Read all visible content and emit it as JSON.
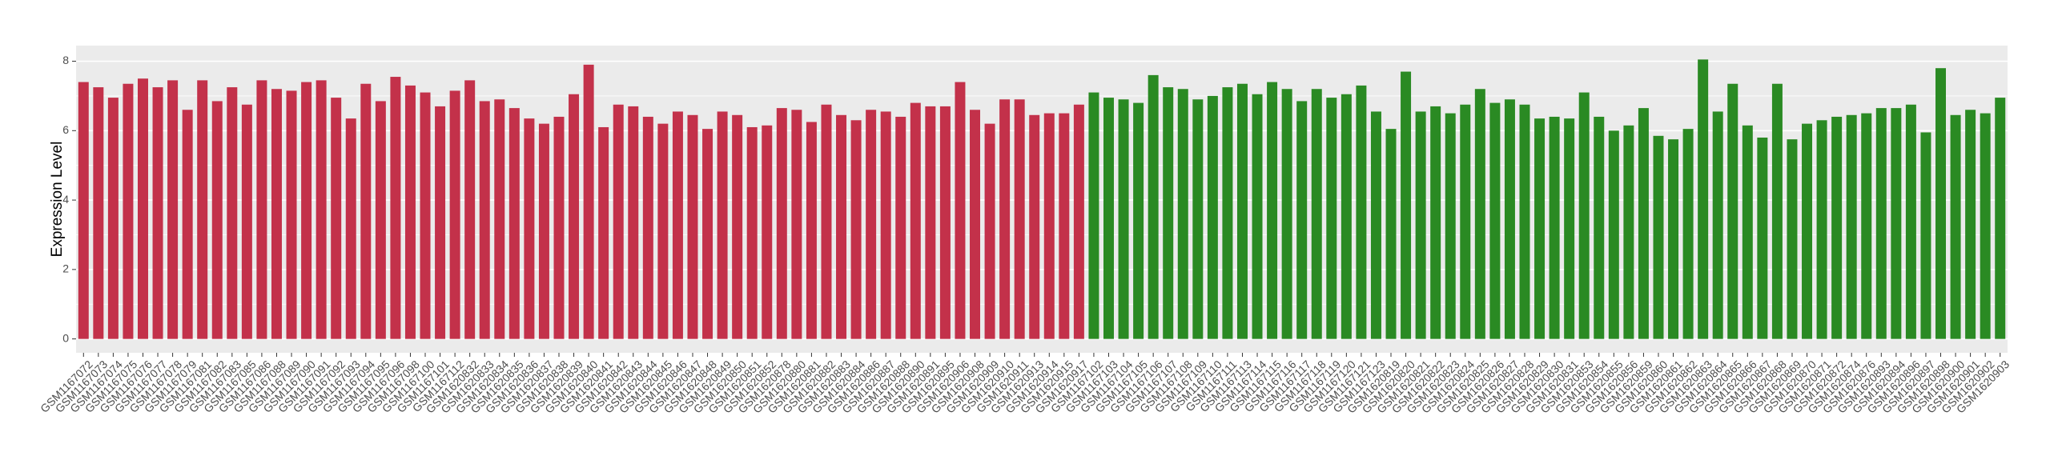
{
  "chart_data": {
    "type": "bar",
    "ylabel": "Expression Level",
    "ylim": [
      -0.4,
      8.45
    ],
    "yticks": [
      0,
      2,
      4,
      6,
      8
    ],
    "grid": true,
    "series": [
      {
        "color": "#c3314a",
        "categories": [
          "GSM1167072",
          "GSM1167073",
          "GSM1167074",
          "GSM1167075",
          "GSM1167076",
          "GSM1167077",
          "GSM1167078",
          "GSM1167079",
          "GSM1167081",
          "GSM1167082",
          "GSM1167083",
          "GSM1167085",
          "GSM1167086",
          "GSM1167088",
          "GSM1167089",
          "GSM1167090",
          "GSM1167091",
          "GSM1167092",
          "GSM1167093",
          "GSM1167094",
          "GSM1167095",
          "GSM1167096",
          "GSM1167098",
          "GSM1167100",
          "GSM1167101",
          "GSM1167112",
          "GSM1620832",
          "GSM1620833",
          "GSM1620834",
          "GSM1620835",
          "GSM1620836",
          "GSM1620837",
          "GSM1620838",
          "GSM1620839",
          "GSM1620840",
          "GSM1620841",
          "GSM1620842",
          "GSM1620843",
          "GSM1620844",
          "GSM1620845",
          "GSM1620846",
          "GSM1620847",
          "GSM1620848",
          "GSM1620849",
          "GSM1620850",
          "GSM1620851",
          "GSM1620852",
          "GSM1620878",
          "GSM1620880",
          "GSM1620881",
          "GSM1620882",
          "GSM1620883",
          "GSM1620884",
          "GSM1620886",
          "GSM1620887",
          "GSM1620888",
          "GSM1620890",
          "GSM1620891",
          "GSM1620895",
          "GSM1620906",
          "GSM1620908",
          "GSM1620909",
          "GSM1620910",
          "GSM1620911",
          "GSM1620913",
          "GSM1620914",
          "GSM1620915",
          "GSM1620917"
        ],
        "values": [
          7.4,
          7.25,
          6.95,
          7.35,
          7.5,
          7.25,
          7.45,
          6.6,
          7.45,
          6.85,
          7.25,
          6.75,
          7.45,
          7.2,
          7.15,
          7.4,
          7.45,
          6.95,
          6.35,
          7.35,
          6.85,
          7.55,
          7.3,
          7.1,
          6.7,
          7.15,
          7.45,
          6.85,
          6.9,
          6.65,
          6.35,
          6.2,
          6.4,
          7.05,
          7.9,
          6.1,
          6.75,
          6.7,
          6.4,
          6.2,
          6.55,
          6.45,
          6.05,
          6.55,
          6.45,
          6.1,
          6.15,
          6.65,
          6.6,
          6.25,
          6.75,
          6.45,
          6.3,
          6.6,
          6.55,
          6.4,
          6.8,
          6.7,
          6.7,
          7.4,
          6.6,
          6.2,
          6.9,
          6.9,
          6.45,
          6.5,
          6.5,
          6.75
        ]
      },
      {
        "color": "#2a8a23",
        "categories": [
          "GSM1167102",
          "GSM1167103",
          "GSM1167104",
          "GSM1167105",
          "GSM1167106",
          "GSM1167107",
          "GSM1167108",
          "GSM1167109",
          "GSM1167110",
          "GSM1167111",
          "GSM1167113",
          "GSM1167114",
          "GSM1167115",
          "GSM1167116",
          "GSM1167117",
          "GSM1167118",
          "GSM1167119",
          "GSM1167120",
          "GSM1167121",
          "GSM1167123",
          "GSM1620819",
          "GSM1620820",
          "GSM1620821",
          "GSM1620822",
          "GSM1620823",
          "GSM1620824",
          "GSM1620825",
          "GSM1620826",
          "GSM1620827",
          "GSM1620828",
          "GSM1620829",
          "GSM1620830",
          "GSM1620831",
          "GSM1620853",
          "GSM1620854",
          "GSM1620855",
          "GSM1620856",
          "GSM1620859",
          "GSM1620860",
          "GSM1620861",
          "GSM1620862",
          "GSM1620863",
          "GSM1620864",
          "GSM1620865",
          "GSM1620866",
          "GSM1620867",
          "GSM1620868",
          "GSM1620869",
          "GSM1620870",
          "GSM1620871",
          "GSM1620872",
          "GSM1620874",
          "GSM1620876",
          "GSM1620893",
          "GSM1620894",
          "GSM1620896",
          "GSM1620897",
          "GSM1620898",
          "GSM1620900",
          "GSM1620901",
          "GSM1620902",
          "GSM1620903"
        ],
        "values": [
          7.1,
          6.95,
          6.9,
          6.8,
          7.6,
          7.25,
          7.2,
          6.9,
          7.0,
          7.25,
          7.35,
          7.05,
          7.4,
          7.2,
          6.85,
          7.2,
          6.95,
          7.05,
          7.3,
          6.55,
          6.05,
          7.7,
          6.55,
          6.7,
          6.5,
          6.75,
          7.2,
          6.8,
          6.9,
          6.75,
          6.35,
          6.4,
          6.35,
          7.1,
          6.4,
          6.0,
          6.15,
          6.65,
          5.85,
          5.75,
          6.05,
          8.05,
          6.55,
          7.35,
          6.15,
          5.8,
          7.35,
          5.75,
          6.2,
          6.3,
          6.4,
          6.45,
          6.5,
          6.65,
          6.65,
          6.75,
          5.95,
          7.8,
          6.45,
          6.6,
          6.5,
          6.95
        ]
      }
    ]
  }
}
